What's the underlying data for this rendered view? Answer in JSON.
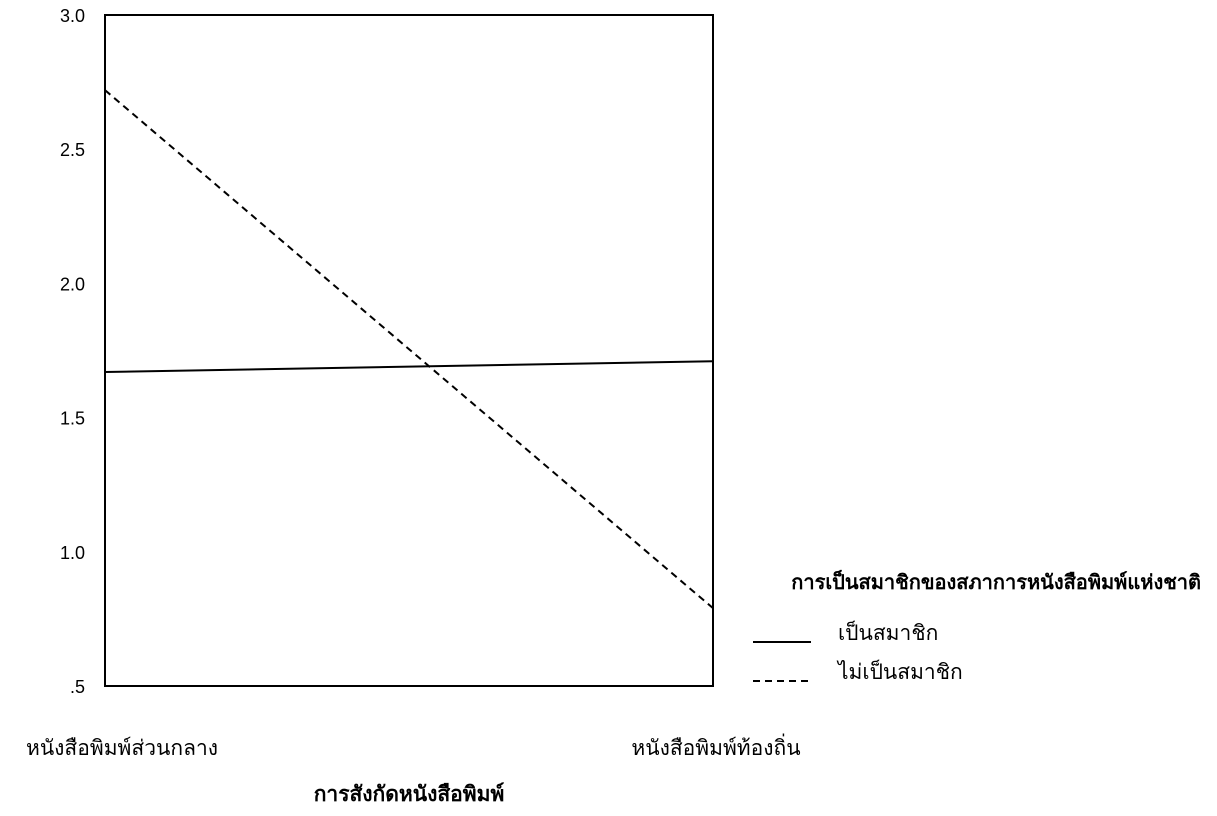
{
  "chart_data": {
    "type": "line",
    "title": "",
    "xlabel": "การสังกัดหนังสือพิมพ์",
    "ylabel": "",
    "categories": [
      "หนังสือพิมพ์ส่วนกลาง",
      "หนังสือพิมพ์ท้องถิ่น"
    ],
    "yticks": [
      "3.0",
      "2.5",
      "2.0",
      "1.5",
      "1.0",
      ".5"
    ],
    "ylim": [
      0.5,
      3.0
    ],
    "grid": false,
    "legend": {
      "title": "การเป็นสมาชิกของสภาการหนังสือพิมพ์แห่งชาติ",
      "placement": "right"
    },
    "series": [
      {
        "name": "เป็นสมาชิก",
        "values": [
          1.67,
          1.71
        ],
        "style": "solid"
      },
      {
        "name": "ไม่เป็นสมาชิก",
        "values": [
          2.72,
          0.79
        ],
        "style": "dashed"
      }
    ]
  }
}
